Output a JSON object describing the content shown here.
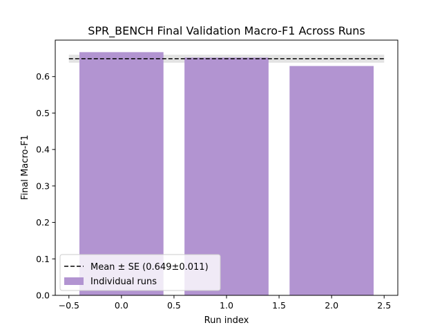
{
  "chart_data": {
    "type": "bar",
    "title": "SPR_BENCH Final Validation Macro-F1 Across Runs",
    "xlabel": "Run index",
    "ylabel": "Final Macro-F1",
    "x": [
      0,
      1,
      2
    ],
    "values": [
      0.667,
      0.652,
      0.629
    ],
    "bar_width": 0.8,
    "bar_color": "#b294d1",
    "mean": 0.649,
    "se": 0.011,
    "mean_line_color": "#000000",
    "se_band_color": "#d9d9d9",
    "xlim": [
      -0.63,
      2.63
    ],
    "ylim": [
      0.0,
      0.7
    ],
    "xticks": [
      -0.5,
      0.0,
      0.5,
      1.0,
      1.5,
      2.0,
      2.5
    ],
    "xtick_labels": [
      "−0.5",
      "0.0",
      "0.5",
      "1.0",
      "1.5",
      "2.0",
      "2.5"
    ],
    "yticks": [
      0.0,
      0.1,
      0.2,
      0.3,
      0.4,
      0.5,
      0.6
    ],
    "ytick_labels": [
      "0.0",
      "0.1",
      "0.2",
      "0.3",
      "0.4",
      "0.5",
      "0.6"
    ],
    "grid": false,
    "legend": {
      "placement": "lower-left",
      "entries": [
        {
          "label": "Mean ± SE (0.649±0.011)",
          "kind": "dashed-line"
        },
        {
          "label": "Individual runs",
          "kind": "patch"
        }
      ]
    }
  }
}
